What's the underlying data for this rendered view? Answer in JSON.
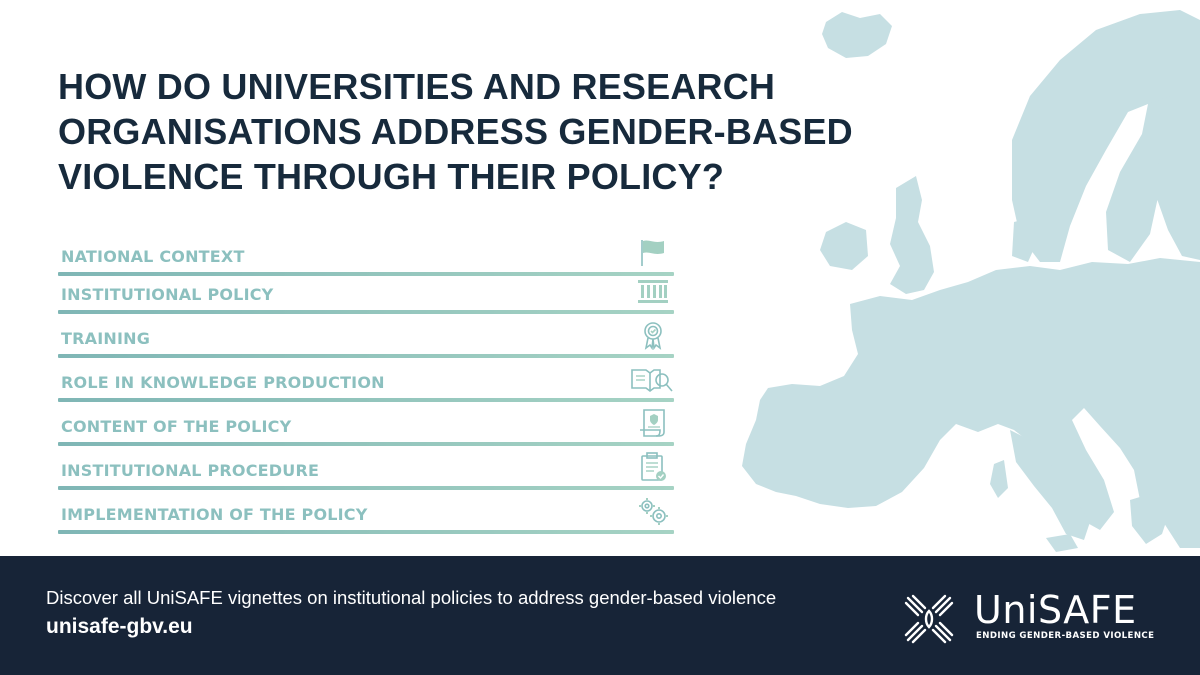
{
  "headline": "HOW DO UNIVERSITIES AND RESEARCH ORGANISATIONS ADDRESS GENDER-BASED VIOLENCE THROUGH THEIR POLICY?",
  "items": [
    {
      "label": "NATIONAL CONTEXT",
      "icon": "flag-icon"
    },
    {
      "label": "INSTITUTIONAL POLICY",
      "icon": "institution-icon"
    },
    {
      "label": "TRAINING",
      "icon": "award-badge-icon"
    },
    {
      "label": "ROLE IN KNOWLEDGE PRODUCTION",
      "icon": "book-magnifier-icon"
    },
    {
      "label": "CONTENT OF THE POLICY",
      "icon": "document-scroll-icon"
    },
    {
      "label": "INSTITUTIONAL PROCEDURE",
      "icon": "clipboard-checklist-icon"
    },
    {
      "label": "IMPLEMENTATION  OF THE POLICY",
      "icon": "gears-icon"
    }
  ],
  "footer": {
    "text": "Discover all UniSAFE vignettes on institutional policies to address gender-based violence",
    "url": "unisafe-gbv.eu"
  },
  "logo": {
    "name": "UniSAFE",
    "tagline": "ENDING GENDER-BASED VIOLENCE"
  },
  "colors": {
    "navy": "#172437",
    "headline": "#172a3c",
    "teal_label": "#8cc0bf",
    "map": "#c5dee2"
  }
}
